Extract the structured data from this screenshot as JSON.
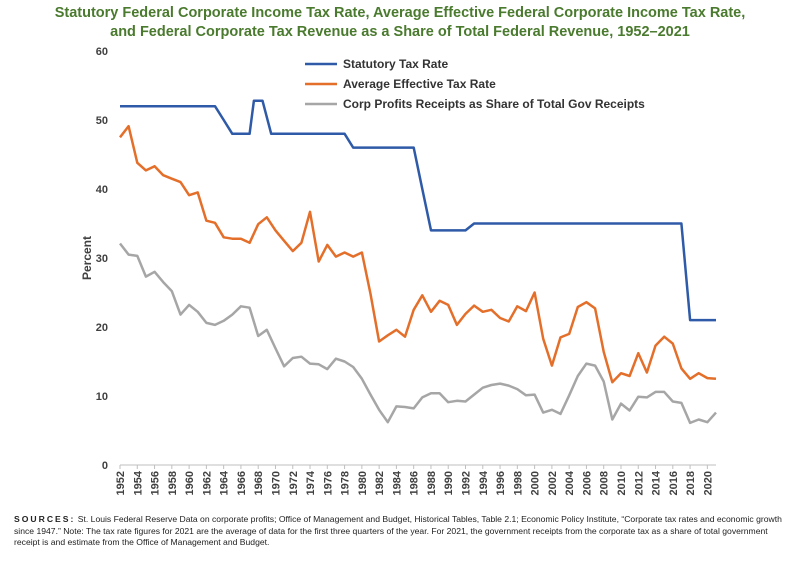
{
  "title": {
    "line1": "Statutory Federal Corporate Income Tax Rate, Average Effective Federal Corporate Income Tax Rate,",
    "line2": "and Federal Corporate Tax Revenue as a Share of Total Federal Revenue, 1952–2021"
  },
  "sources": {
    "label": "SOURCES:",
    "text": "St. Louis Federal Reserve Data on corporate profits; Office of Management and Budget, Historical Tables, Table 2.1; Economic Policy Institute, “Corporate tax rates and economic growth since 1947.” Note: The tax rate figures for 2021 are the average of data for the first three quarters of the year. For 2021, the government receipts from the corporate tax as a share of total government receipt is and estimate from the Office of Management and Budget."
  },
  "chart_data": {
    "type": "line",
    "ylabel": "Percent",
    "xlabel": "",
    "ylim": [
      0,
      60
    ],
    "yticks": [
      0,
      10,
      20,
      30,
      40,
      50,
      60
    ],
    "xlim": [
      1952,
      2021
    ],
    "xticks": [
      1952,
      1954,
      1956,
      1958,
      1960,
      1962,
      1964,
      1966,
      1968,
      1970,
      1972,
      1974,
      1976,
      1978,
      1980,
      1982,
      1984,
      1986,
      1988,
      1990,
      1992,
      1994,
      1996,
      1998,
      2000,
      2002,
      2004,
      2006,
      2008,
      2010,
      2012,
      2014,
      2016,
      2018,
      2020
    ],
    "legend_position": "top-center",
    "series": [
      {
        "name": "Statutory  Tax Rate",
        "color": "#2e5aa8",
        "points": [
          [
            1952,
            52
          ],
          [
            1963,
            52
          ],
          [
            1964,
            50
          ],
          [
            1965,
            48
          ],
          [
            1967,
            48
          ],
          [
            1967.5,
            52.8
          ],
          [
            1968.5,
            52.8
          ],
          [
            1969.5,
            48
          ],
          [
            1978,
            48
          ],
          [
            1979,
            46
          ],
          [
            1986,
            46
          ],
          [
            1987,
            40
          ],
          [
            1988,
            34
          ],
          [
            1992,
            34
          ],
          [
            1993,
            35
          ],
          [
            2017,
            35
          ],
          [
            2018,
            21
          ],
          [
            2021,
            21
          ]
        ]
      },
      {
        "name": "Average Effective  Tax Rate",
        "color": "#e46f2a",
        "points": [
          [
            1952,
            47.5
          ],
          [
            1953,
            49.1
          ],
          [
            1954,
            43.8
          ],
          [
            1955,
            42.7
          ],
          [
            1956,
            43.3
          ],
          [
            1957,
            42
          ],
          [
            1958,
            41.5
          ],
          [
            1959,
            41
          ],
          [
            1960,
            39.1
          ],
          [
            1961,
            39.5
          ],
          [
            1962,
            35.4
          ],
          [
            1963,
            35.1
          ],
          [
            1964,
            33
          ],
          [
            1965,
            32.8
          ],
          [
            1966,
            32.8
          ],
          [
            1967,
            32.2
          ],
          [
            1968,
            34.9
          ],
          [
            1969,
            35.9
          ],
          [
            1970,
            34
          ],
          [
            1971,
            32.5
          ],
          [
            1972,
            31
          ],
          [
            1973,
            32.2
          ],
          [
            1974,
            36.7
          ],
          [
            1975,
            29.5
          ],
          [
            1976,
            31.9
          ],
          [
            1977,
            30.2
          ],
          [
            1978,
            30.8
          ],
          [
            1979,
            30.2
          ],
          [
            1980,
            30.8
          ],
          [
            1981,
            24.8
          ],
          [
            1982,
            17.9
          ],
          [
            1983,
            18.8
          ],
          [
            1984,
            19.6
          ],
          [
            1985,
            18.6
          ],
          [
            1986,
            22.5
          ],
          [
            1987,
            24.6
          ],
          [
            1988,
            22.2
          ],
          [
            1989,
            23.8
          ],
          [
            1990,
            23.2
          ],
          [
            1991,
            20.3
          ],
          [
            1992,
            21.9
          ],
          [
            1993,
            23.1
          ],
          [
            1994,
            22.2
          ],
          [
            1995,
            22.5
          ],
          [
            1996,
            21.3
          ],
          [
            1997,
            20.8
          ],
          [
            1998,
            23
          ],
          [
            1999,
            22.3
          ],
          [
            2000,
            25
          ],
          [
            2001,
            18.3
          ],
          [
            2002,
            14.4
          ],
          [
            2003,
            18.5
          ],
          [
            2004,
            19
          ],
          [
            2005,
            22.9
          ],
          [
            2006,
            23.6
          ],
          [
            2007,
            22.7
          ],
          [
            2008,
            16.4
          ],
          [
            2009,
            12
          ],
          [
            2010,
            13.3
          ],
          [
            2011,
            12.9
          ],
          [
            2012,
            16.2
          ],
          [
            2013,
            13.4
          ],
          [
            2014,
            17.3
          ],
          [
            2015,
            18.6
          ],
          [
            2016,
            17.6
          ],
          [
            2017,
            14
          ],
          [
            2018,
            12.5
          ],
          [
            2019,
            13.3
          ],
          [
            2020,
            12.6
          ],
          [
            2021,
            12.5
          ]
        ]
      },
      {
        "name": "Corp Profits Receipts as Share of Total Gov Receipts",
        "color": "#a6a6a6",
        "points": [
          [
            1952,
            32.1
          ],
          [
            1953,
            30.5
          ],
          [
            1954,
            30.3
          ],
          [
            1955,
            27.3
          ],
          [
            1956,
            28
          ],
          [
            1957,
            26.5
          ],
          [
            1958,
            25.2
          ],
          [
            1959,
            21.8
          ],
          [
            1960,
            23.2
          ],
          [
            1961,
            22.2
          ],
          [
            1962,
            20.6
          ],
          [
            1963,
            20.3
          ],
          [
            1964,
            20.9
          ],
          [
            1965,
            21.8
          ],
          [
            1966,
            23
          ],
          [
            1967,
            22.8
          ],
          [
            1968,
            18.7
          ],
          [
            1969,
            19.6
          ],
          [
            1970,
            16.9
          ],
          [
            1971,
            14.3
          ],
          [
            1972,
            15.5
          ],
          [
            1973,
            15.7
          ],
          [
            1974,
            14.7
          ],
          [
            1975,
            14.6
          ],
          [
            1976,
            13.9
          ],
          [
            1977,
            15.4
          ],
          [
            1978,
            15
          ],
          [
            1979,
            14.2
          ],
          [
            1980,
            12.5
          ],
          [
            1981,
            10.2
          ],
          [
            1982,
            8
          ],
          [
            1983,
            6.2
          ],
          [
            1984,
            8.5
          ],
          [
            1985,
            8.4
          ],
          [
            1986,
            8.2
          ],
          [
            1987,
            9.8
          ],
          [
            1988,
            10.4
          ],
          [
            1989,
            10.4
          ],
          [
            1990,
            9.1
          ],
          [
            1991,
            9.3
          ],
          [
            1992,
            9.2
          ],
          [
            1993,
            10.2
          ],
          [
            1994,
            11.2
          ],
          [
            1995,
            11.6
          ],
          [
            1996,
            11.8
          ],
          [
            1997,
            11.5
          ],
          [
            1998,
            11
          ],
          [
            1999,
            10.1
          ],
          [
            2000,
            10.2
          ],
          [
            2001,
            7.6
          ],
          [
            2002,
            8
          ],
          [
            2003,
            7.4
          ],
          [
            2004,
            10.1
          ],
          [
            2005,
            12.9
          ],
          [
            2006,
            14.7
          ],
          [
            2007,
            14.4
          ],
          [
            2008,
            12.1
          ],
          [
            2009,
            6.6
          ],
          [
            2010,
            8.9
          ],
          [
            2011,
            7.9
          ],
          [
            2012,
            9.9
          ],
          [
            2013,
            9.8
          ],
          [
            2014,
            10.6
          ],
          [
            2015,
            10.6
          ],
          [
            2016,
            9.2
          ],
          [
            2017,
            9
          ],
          [
            2018,
            6.1
          ],
          [
            2019,
            6.6
          ],
          [
            2020,
            6.2
          ],
          [
            2021,
            7.6
          ]
        ]
      }
    ]
  }
}
